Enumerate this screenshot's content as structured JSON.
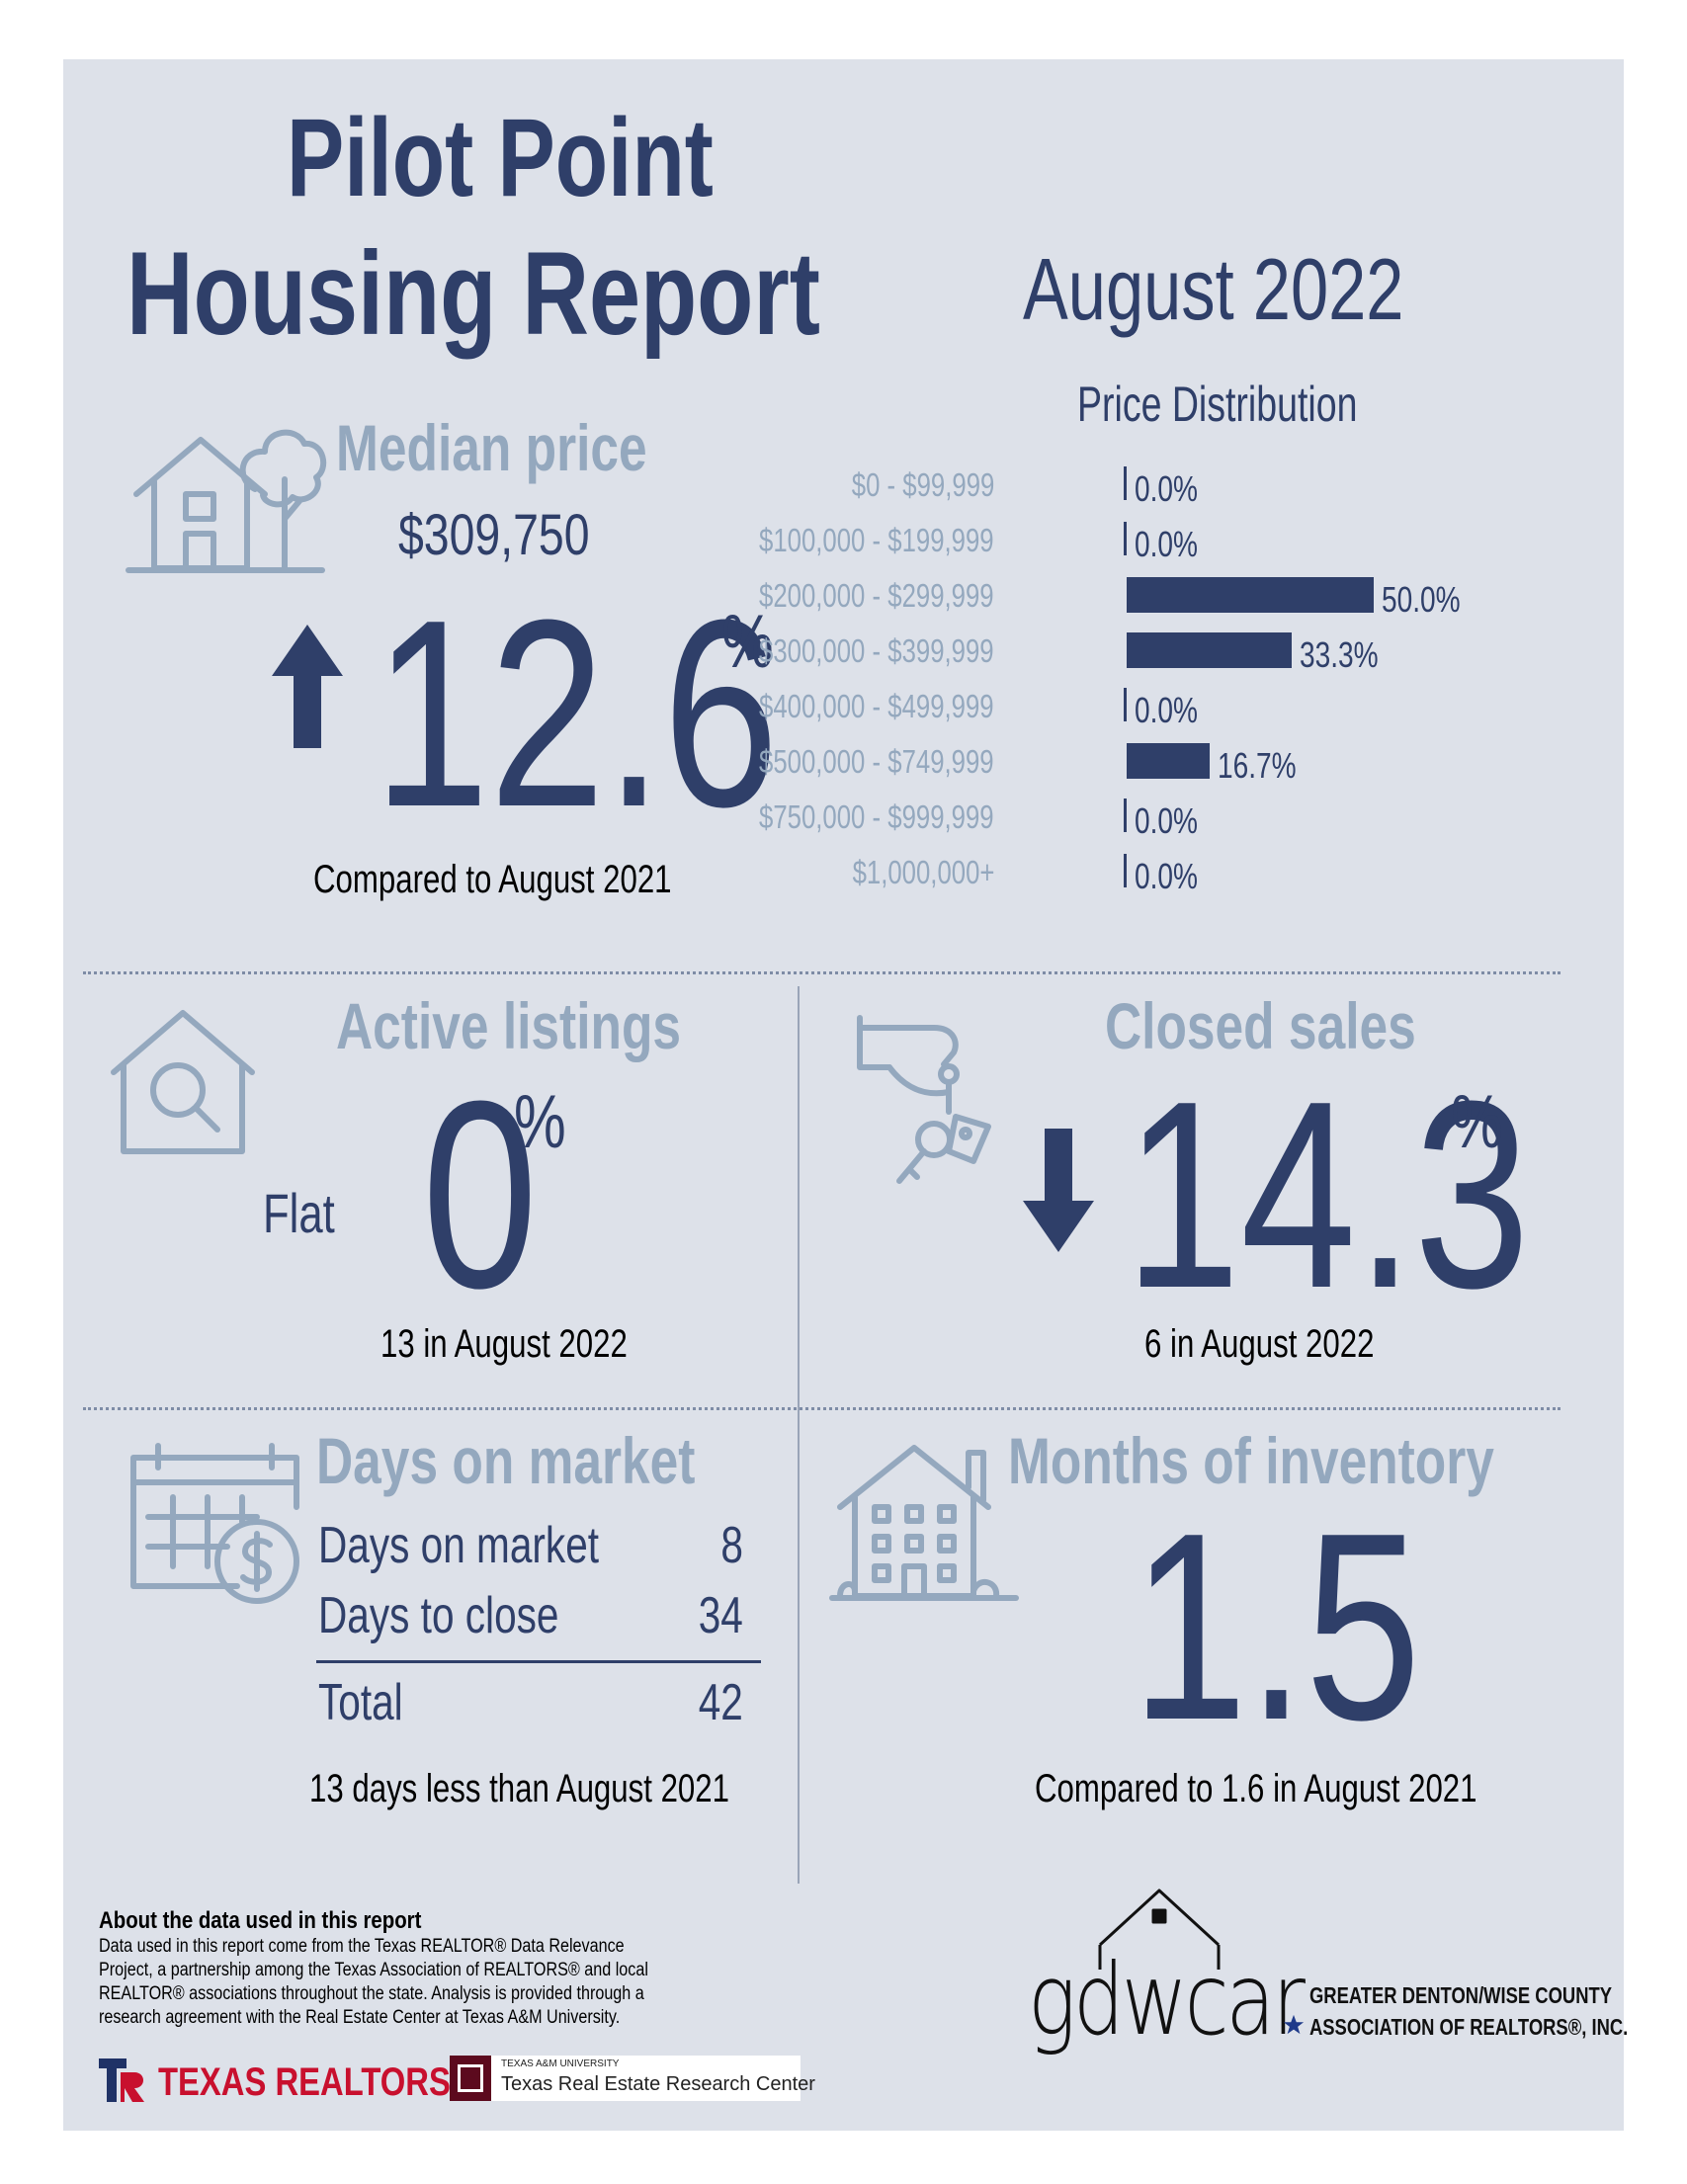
{
  "title": {
    "line1": "Pilot Point",
    "line2": "Housing Report",
    "month": "August 2022"
  },
  "median": {
    "heading": "Median price",
    "price": "$309,750",
    "change": "12.6",
    "pct": "%",
    "direction": "up",
    "caption": "Compared to August 2021"
  },
  "chart_data": {
    "type": "bar",
    "title": "Price Distribution",
    "categories": [
      "$0 - $99,999",
      "$100,000 - $199,999",
      "$200,000 - $299,999",
      "$300,000 - $399,999",
      "$400,000 - $499,999",
      "$500,000 - $749,999",
      "$750,000 - $999,999",
      "$1,000,000+"
    ],
    "values": [
      0.0,
      0.0,
      50.0,
      33.3,
      0.0,
      16.7,
      0.0,
      0.0
    ],
    "labels": [
      "0.0%",
      "0.0%",
      "50.0%",
      "33.3%",
      "0.0%",
      "16.7%",
      "0.0%",
      "0.0%"
    ],
    "orientation": "horizontal",
    "xlim": [
      0,
      50
    ]
  },
  "active": {
    "heading": "Active listings",
    "flat": "Flat",
    "value": "0",
    "pct": "%",
    "caption": "13 in August 2022"
  },
  "closed": {
    "heading": "Closed sales",
    "value": "14.3",
    "pct": "%",
    "direction": "down",
    "caption": "6 in August 2022"
  },
  "dom": {
    "heading": "Days on market",
    "rows": [
      {
        "label": "Days on market",
        "value": "8"
      },
      {
        "label": "Days to close",
        "value": "34"
      }
    ],
    "total": {
      "label": "Total",
      "value": "42"
    },
    "caption": "13 days less than August 2021"
  },
  "moi": {
    "heading": "Months of inventory",
    "value": "1.5",
    "caption": "Compared to 1.6 in August 2021"
  },
  "footer": {
    "heading": "About the data used in this report",
    "text": "Data used in this report come from the Texas REALTOR® Data Relevance Project, a partnership among the Texas Association of REALTORS® and local REALTOR® associations throughout the state. Analysis is provided through a research agreement with the Real Estate Center at Texas A&M University.",
    "logo1": "TEXAS REALTORS",
    "logo2_small": "TEXAS A&M UNIVERSITY",
    "logo2": "Texas Real Estate Research Center",
    "assoc_mark": "gdwcar",
    "assoc_line1": "GREATER DENTON/WISE COUNTY",
    "assoc_line2": "ASSOCIATION OF REALTORS®, INC."
  },
  "colors": {
    "navy": "#2f3f69",
    "light": "#94a8be",
    "panel": "#dde1e9"
  }
}
